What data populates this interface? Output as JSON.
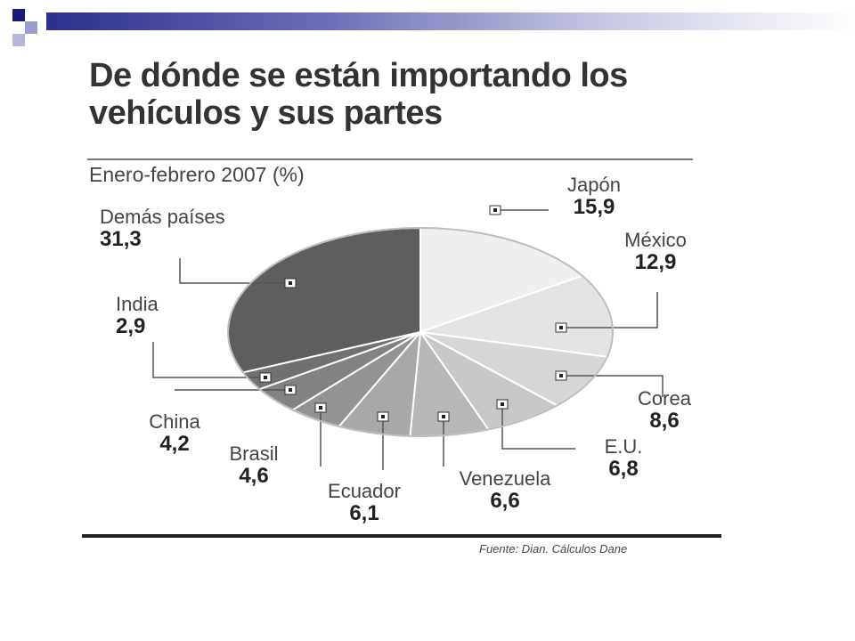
{
  "slide": {
    "decoration_colors": [
      "#1a1a7a",
      "#9b9dcf",
      "#2c2f8c"
    ]
  },
  "title": "De dónde se están importando los vehículos y sus partes",
  "subtitle": "Enero-febrero 2007 (%)",
  "source": "Fuente: Dian. Cálculos Dane",
  "chart_data": {
    "type": "pie",
    "title": "De dónde se están importando los vehículos y sus partes",
    "subtitle": "Enero-febrero 2007 (%)",
    "start": "12 o'clock, clockwise",
    "slices": [
      {
        "label": "Japón",
        "value": 15.9,
        "value_text": "15,9",
        "color": "#efefef"
      },
      {
        "label": "México",
        "value": 12.9,
        "value_text": "12,9",
        "color": "#e3e3e3"
      },
      {
        "label": "Corea",
        "value": 8.6,
        "value_text": "8,6",
        "color": "#d6d6d6"
      },
      {
        "label": "E.U.",
        "value": 6.8,
        "value_text": "6,8",
        "color": "#c8c8c8"
      },
      {
        "label": "Venezuela",
        "value": 6.6,
        "value_text": "6,6",
        "color": "#b7b7b7"
      },
      {
        "label": "Ecuador",
        "value": 6.1,
        "value_text": "6,1",
        "color": "#a8a8a8"
      },
      {
        "label": "Brasil",
        "value": 4.6,
        "value_text": "4,6",
        "color": "#939393"
      },
      {
        "label": "China",
        "value": 4.2,
        "value_text": "4,2",
        "color": "#828282"
      },
      {
        "label": "India",
        "value": 2.9,
        "value_text": "2,9",
        "color": "#717171"
      },
      {
        "label": "Demás países",
        "value": 31.3,
        "value_text": "31,3",
        "color": "#5e5e5e"
      }
    ]
  }
}
